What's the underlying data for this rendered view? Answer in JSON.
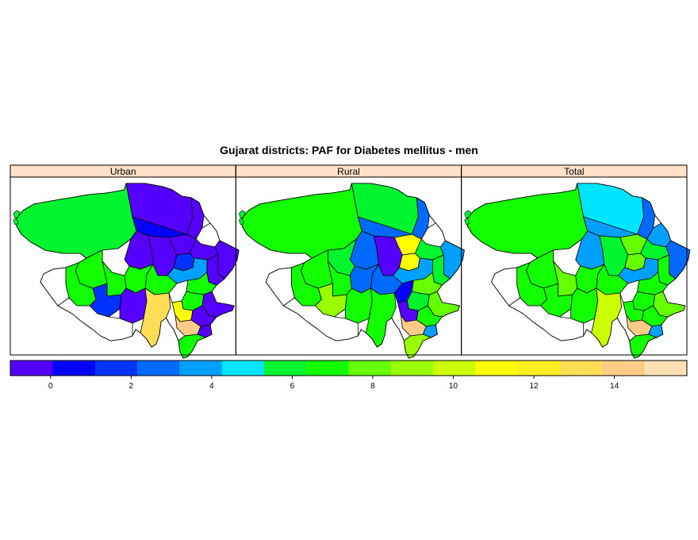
{
  "title": "Gujarat districts: PAF for Diabetes mellitus - men",
  "panels": [
    {
      "label": "Urban"
    },
    {
      "label": "Rural"
    },
    {
      "label": "Total"
    }
  ],
  "colorkey": {
    "colors": [
      "#5500ff",
      "#0000ff",
      "#0033ff",
      "#006aff",
      "#00a0ff",
      "#00e5ff",
      "#00f52e",
      "#11ff00",
      "#66ff00",
      "#99ff00",
      "#ccff00",
      "#ffff00",
      "#ffee22",
      "#ffdd55",
      "#ffcc88",
      "#ffe0b2"
    ],
    "min": -1,
    "max": 15.8,
    "ticks": [
      "0",
      "2",
      "4",
      "6",
      "8",
      "10",
      "12",
      "14"
    ],
    "tick_values": [
      0,
      2,
      4,
      6,
      8,
      10,
      12,
      14
    ]
  },
  "strip_color": "#ffe0c8",
  "no_data_color": "#ffffff"
}
